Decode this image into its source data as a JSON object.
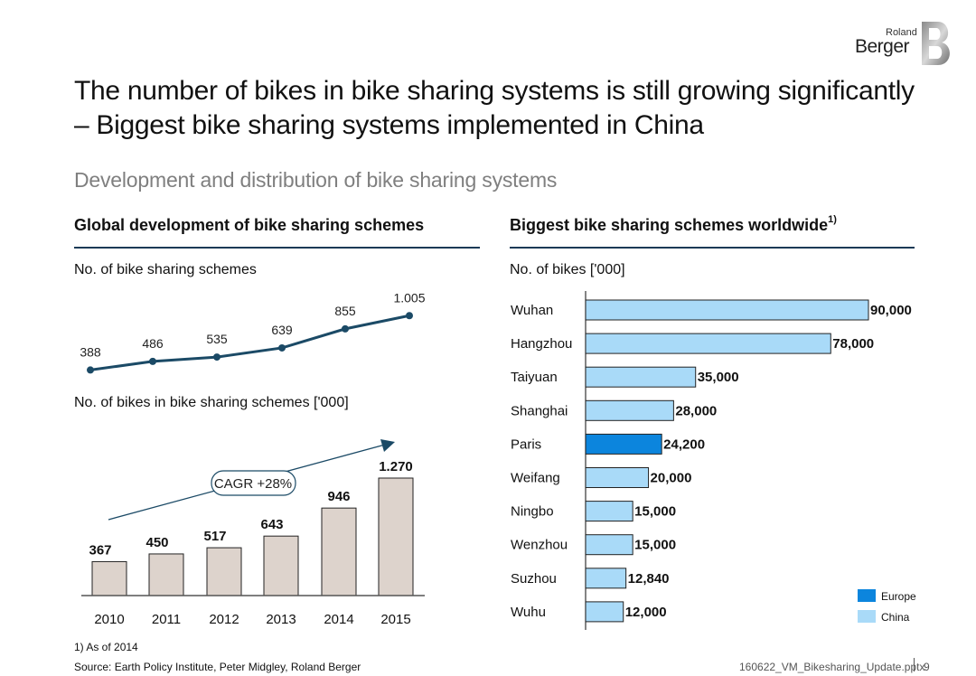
{
  "logo": {
    "line1": "Roland",
    "line2": "Berger"
  },
  "title": "The number of bikes in bike sharing systems is still growing significantly – Biggest bike sharing systems implemented in China",
  "subtitle": "Development and distribution of bike sharing systems",
  "left_section": {
    "heading": "Global development of bike sharing schemes",
    "schemes_label": "No. of bike sharing schemes",
    "bikes_label": "No. of bikes in bike sharing schemes ['000]",
    "cagr": "CAGR +28%"
  },
  "right_section": {
    "heading": "Biggest bike sharing schemes worldwide",
    "heading_sup": "1)",
    "bikes_label": "No. of bikes ['000]"
  },
  "colors": {
    "europe": "#0c85dd",
    "china": "#a9daf8",
    "bar_grey": "#ddd3cc",
    "line": "#1b4a66"
  },
  "chart_data": [
    {
      "type": "line",
      "title": "No. of bike sharing schemes",
      "categories": [
        "2010",
        "2011",
        "2012",
        "2013",
        "2014",
        "2015"
      ],
      "values": [
        388,
        486,
        535,
        639,
        855,
        1005
      ],
      "labels": [
        "388",
        "486",
        "535",
        "639",
        "855",
        "1.005"
      ]
    },
    {
      "type": "bar",
      "title": "No. of bikes in bike sharing schemes ['000]",
      "categories": [
        "2010",
        "2011",
        "2012",
        "2013",
        "2014",
        "2015"
      ],
      "values": [
        367,
        450,
        517,
        643,
        946,
        1270
      ],
      "labels": [
        "367",
        "450",
        "517",
        "643",
        "946",
        "1.270"
      ],
      "annotation": "CAGR +28%"
    },
    {
      "type": "bar",
      "orientation": "horizontal",
      "title": "Biggest bike sharing schemes worldwide",
      "categories": [
        "Wuhan",
        "Hangzhou",
        "Taiyuan",
        "Shanghai",
        "Paris",
        "Weifang",
        "Ningbo",
        "Wenzhou",
        "Suzhou",
        "Wuhu"
      ],
      "values": [
        90000,
        78000,
        35000,
        28000,
        24200,
        20000,
        15000,
        15000,
        12840,
        12000
      ],
      "labels": [
        "90,000",
        "78,000",
        "35,000",
        "28,000",
        "24,200",
        "20,000",
        "15,000",
        "15,000",
        "12,840",
        "12,000"
      ],
      "groups": [
        "China",
        "China",
        "China",
        "China",
        "Europe",
        "China",
        "China",
        "China",
        "China",
        "China"
      ],
      "legend": [
        {
          "name": "Europe"
        },
        {
          "name": "China"
        }
      ]
    }
  ],
  "footnote": "1) As of 2014",
  "source": "Source: Earth Policy Institute, Peter Midgley, Roland Berger",
  "file_id": "160622_VM_Bikesharing_Update.pptx",
  "page_number": "9"
}
